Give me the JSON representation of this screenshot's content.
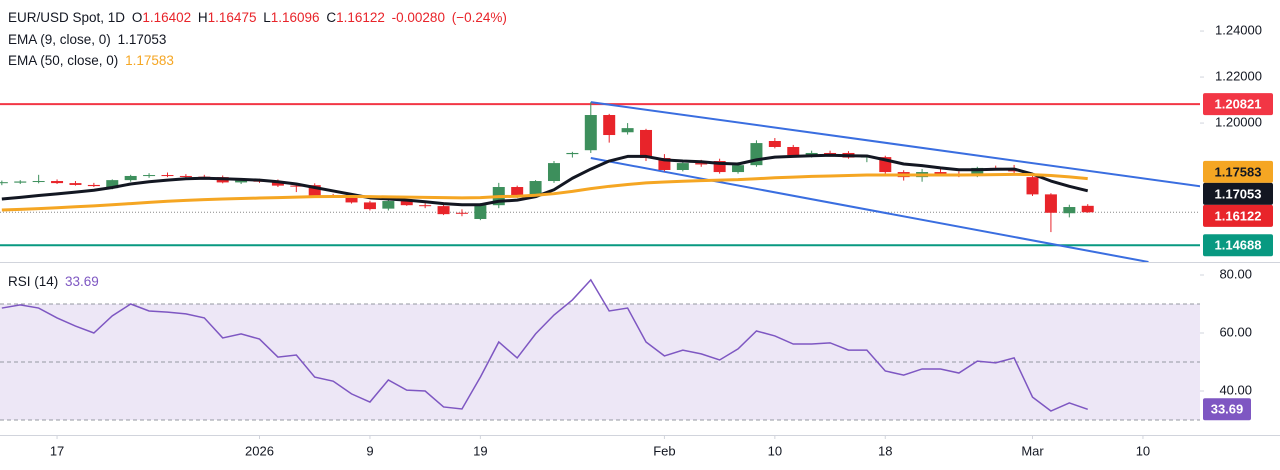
{
  "chart_data": {
    "type": "candlestick",
    "title": "EUR/USD Spot, 1D",
    "ohlc_prefixes": [
      "O",
      "H",
      "L",
      "C"
    ],
    "change": {
      "value": -0.0028,
      "label": "-0.00280"
    },
    "change_pct": {
      "value": -0.24,
      "label": "(−0.24%)"
    },
    "up_color": "#3d8f5c",
    "down_color": "#e8242a",
    "candles": {
      "open": [
        1.1739,
        1.1741,
        1.1745,
        1.1748,
        1.1739,
        1.1731,
        1.1717,
        1.1752,
        1.177,
        1.1774,
        1.177,
        1.1767,
        1.1765,
        1.1742,
        1.175,
        1.1748,
        1.1728,
        1.173,
        1.1685,
        1.1683,
        1.1655,
        1.1628,
        1.1661,
        1.1643,
        1.1639,
        1.161,
        1.1583,
        1.1643,
        1.1722,
        1.1683,
        1.1748,
        1.1865,
        1.1882,
        1.2035,
        1.196,
        1.197,
        1.1848,
        1.1796,
        1.1826,
        1.1835,
        1.1787,
        1.1817,
        1.1922,
        1.1896,
        1.186,
        1.187,
        1.187,
        1.185,
        1.1852,
        1.1787,
        1.1765,
        1.1787,
        1.1775,
        1.177,
        1.1805,
        1.18,
        1.1765,
        1.169,
        1.1608,
        1.16402
      ],
      "high": [
        1.175,
        1.1752,
        1.1775,
        1.1755,
        1.1748,
        1.174,
        1.1755,
        1.1775,
        1.1782,
        1.1785,
        1.1778,
        1.1775,
        1.1772,
        1.1755,
        1.1758,
        1.1755,
        1.174,
        1.1738,
        1.1692,
        1.169,
        1.1662,
        1.1668,
        1.1668,
        1.1652,
        1.165,
        1.1625,
        1.1652,
        1.174,
        1.1728,
        1.1752,
        1.1835,
        1.1875,
        1.2091,
        1.204,
        1.2,
        1.1975,
        1.1865,
        1.183,
        1.184,
        1.1845,
        1.183,
        1.1925,
        1.1935,
        1.1905,
        1.188,
        1.188,
        1.1878,
        1.1862,
        1.1858,
        1.1795,
        1.18,
        1.1805,
        1.179,
        1.181,
        1.1815,
        1.1818,
        1.1775,
        1.1695,
        1.1645,
        1.16475
      ],
      "low": [
        1.173,
        1.1735,
        1.1738,
        1.1735,
        1.1728,
        1.1722,
        1.1712,
        1.1745,
        1.1762,
        1.1765,
        1.176,
        1.1758,
        1.1738,
        1.1735,
        1.174,
        1.1722,
        1.17,
        1.168,
        1.1675,
        1.165,
        1.162,
        1.162,
        1.164,
        1.163,
        1.16,
        1.1595,
        1.1578,
        1.163,
        1.1675,
        1.1678,
        1.174,
        1.185,
        1.187,
        1.1915,
        1.195,
        1.1835,
        1.179,
        1.179,
        1.181,
        1.178,
        1.178,
        1.181,
        1.189,
        1.1855,
        1.185,
        1.1855,
        1.1845,
        1.183,
        1.178,
        1.175,
        1.1745,
        1.177,
        1.1765,
        1.1765,
        1.1795,
        1.178,
        1.1683,
        1.1526,
        1.159,
        1.16096
      ],
      "close": [
        1.1743,
        1.1746,
        1.1748,
        1.1739,
        1.1731,
        1.1726,
        1.1752,
        1.177,
        1.1774,
        1.177,
        1.1767,
        1.1763,
        1.1742,
        1.175,
        1.1745,
        1.1728,
        1.1726,
        1.1685,
        1.1683,
        1.1655,
        1.1626,
        1.1661,
        1.1643,
        1.1639,
        1.1604,
        1.1607,
        1.1643,
        1.1722,
        1.1683,
        1.1748,
        1.1826,
        1.187,
        1.2035,
        1.1948,
        1.1978,
        1.1848,
        1.1796,
        1.1826,
        1.182,
        1.1787,
        1.1817,
        1.1913,
        1.1896,
        1.186,
        1.187,
        1.1865,
        1.185,
        1.1855,
        1.1787,
        1.1765,
        1.1787,
        1.1775,
        1.177,
        1.1805,
        1.18,
        1.179,
        1.169,
        1.161,
        1.1635,
        1.16122
      ]
    },
    "series": [
      {
        "name": "EMA (9, close, 0)",
        "color": "#131722",
        "values": [
          1.167,
          1.1677,
          1.1685,
          1.1692,
          1.17,
          1.1708,
          1.172,
          1.1735,
          1.1745,
          1.1752,
          1.1758,
          1.176,
          1.1758,
          1.1755,
          1.1752,
          1.1745,
          1.1735,
          1.172,
          1.1705,
          1.169,
          1.1675,
          1.167,
          1.1665,
          1.1658,
          1.165,
          1.1645,
          1.1645,
          1.166,
          1.1665,
          1.168,
          1.171,
          1.176,
          1.18,
          1.1835,
          1.1855,
          1.1855,
          1.184,
          1.1835,
          1.1832,
          1.1825,
          1.1822,
          1.184,
          1.1852,
          1.1855,
          1.1858,
          1.186,
          1.1858,
          1.1857,
          1.184,
          1.1822,
          1.1815,
          1.1805,
          1.1797,
          1.1797,
          1.1799,
          1.18,
          1.1778,
          1.1748,
          1.1725,
          1.17053
        ]
      },
      {
        "name": "EMA (50, close, 0)",
        "color": "#f5a623",
        "values": [
          1.1622,
          1.1625,
          1.1628,
          1.1632,
          1.1636,
          1.164,
          1.1645,
          1.165,
          1.1655,
          1.166,
          1.1664,
          1.1667,
          1.167,
          1.1672,
          1.1674,
          1.1676,
          1.1678,
          1.168,
          1.1681,
          1.1681,
          1.168,
          1.1679,
          1.1678,
          1.1677,
          1.1676,
          1.1675,
          1.1676,
          1.168,
          1.1682,
          1.1686,
          1.1693,
          1.1703,
          1.1715,
          1.1725,
          1.1733,
          1.174,
          1.1744,
          1.1747,
          1.175,
          1.1752,
          1.1754,
          1.1758,
          1.1762,
          1.1765,
          1.1768,
          1.177,
          1.1772,
          1.1774,
          1.1774,
          1.1774,
          1.1774,
          1.1774,
          1.1774,
          1.1775,
          1.1776,
          1.1777,
          1.1776,
          1.1772,
          1.1766,
          1.17583
        ]
      }
    ],
    "levels": [
      {
        "value": 1.20821,
        "color": "#f23645"
      },
      {
        "value": 1.14688,
        "color": "#089981"
      }
    ],
    "trendlines": [
      {
        "color": "#3a6ee0",
        "x": [
          32,
          65.4
        ],
        "prices": [
          1.2091,
          1.1722
        ]
      },
      {
        "color": "#3a6ee0",
        "x": [
          32,
          62.3
        ],
        "prices": [
          1.1848,
          1.1396
        ]
      }
    ],
    "xlim": [
      -0.1,
      65.1
    ],
    "xticks": [
      {
        "value": 3,
        "label": "17"
      },
      {
        "value": 14,
        "label": "2026"
      },
      {
        "value": 20,
        "label": "9"
      },
      {
        "value": 26,
        "label": "19"
      },
      {
        "value": 36,
        "label": "Feb"
      },
      {
        "value": 42,
        "label": "10"
      },
      {
        "value": 48,
        "label": "18"
      },
      {
        "value": 56,
        "label": "Mar"
      },
      {
        "value": 62,
        "label": "10"
      }
    ],
    "ylim": [
      1.1396,
      1.2535
    ],
    "yticks": [
      {
        "value": 1.24,
        "label": "1.24000"
      },
      {
        "value": 1.22,
        "label": "1.22000"
      },
      {
        "value": 1.2,
        "label": "1.20000"
      }
    ],
    "rsi": {
      "name": "RSI (14)",
      "color": "#7e57c2",
      "band_color": "#ede7f6",
      "values": [
        68.6,
        69.7,
        68.6,
        65.2,
        62.4,
        60.0,
        65.9,
        70.0,
        67.6,
        67.2,
        66.6,
        65.2,
        58.3,
        59.7,
        57.9,
        51.7,
        52.4,
        44.8,
        43.4,
        39.0,
        36.2,
        43.8,
        40.3,
        40.0,
        34.5,
        33.8,
        44.8,
        56.9,
        51.4,
        59.7,
        66.2,
        71.4,
        78.3,
        67.6,
        68.6,
        56.9,
        52.1,
        54.1,
        52.8,
        50.7,
        54.5,
        60.7,
        59.0,
        56.2,
        56.2,
        56.6,
        54.1,
        54.1,
        46.9,
        45.5,
        47.6,
        47.6,
        46.2,
        50.3,
        49.7,
        51.4,
        37.9,
        33.1,
        35.9,
        33.69
      ],
      "ylim": [
        24.83,
        84.48
      ],
      "yticks": [
        {
          "value": 80,
          "label": "80.00"
        },
        {
          "value": 60,
          "label": "60.00"
        },
        {
          "value": 40,
          "label": "40.00"
        }
      ],
      "dashed_levels": [
        70,
        50,
        30
      ]
    }
  }
}
